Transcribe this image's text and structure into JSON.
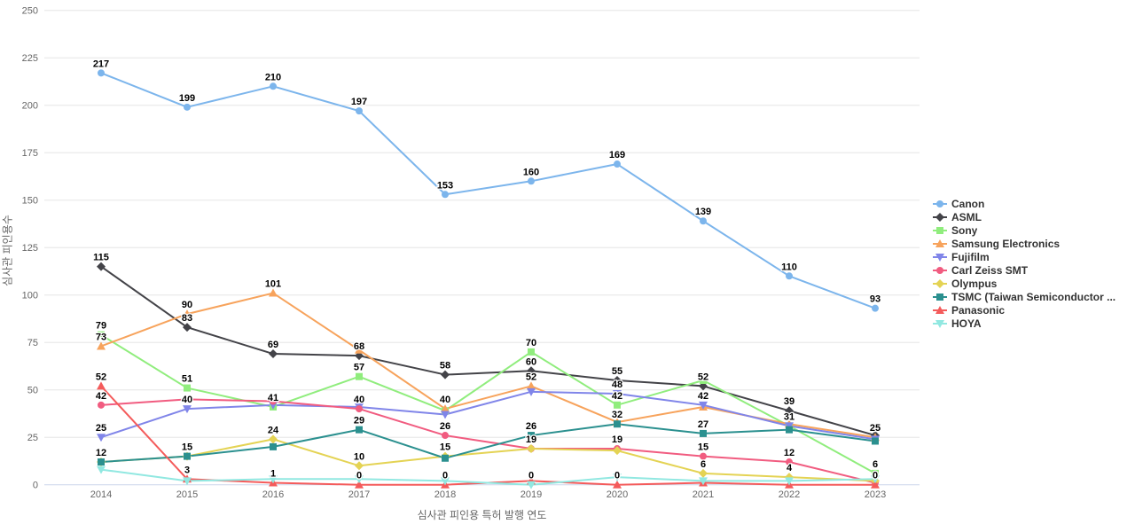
{
  "chart_data": {
    "type": "line",
    "title": "",
    "x_axis": {
      "title": "심사관 피인용 특허 발행 연도",
      "categories": [
        "2014",
        "2015",
        "2016",
        "2017",
        "2018",
        "2019",
        "2020",
        "2021",
        "2022",
        "2023"
      ]
    },
    "y_axis": {
      "title": "심사관 피인용수",
      "min": 0,
      "max": 250,
      "tick_interval": 25,
      "ticks": [
        0,
        25,
        50,
        75,
        100,
        125,
        150,
        175,
        200,
        225,
        250
      ]
    },
    "grid": "horizontal",
    "legend_position": "right",
    "axis_line_color": "#ccd6eb",
    "grid_color": "#e6e6e6",
    "tick_text_color": "#666666",
    "legend_text_color": "#333333",
    "series": [
      {
        "name": "Canon",
        "color": "#7cb5ec",
        "symbol": "circle",
        "values": [
          217,
          199,
          210,
          197,
          153,
          160,
          169,
          139,
          110,
          93
        ],
        "labels": [
          217,
          199,
          210,
          197,
          153,
          160,
          169,
          139,
          110,
          93
        ]
      },
      {
        "name": "ASML",
        "color": "#434348",
        "symbol": "diamond",
        "values": [
          115,
          83,
          69,
          68,
          58,
          60,
          55,
          52,
          39,
          26
        ],
        "labels": [
          115,
          83,
          69,
          68,
          58,
          60,
          55,
          52,
          39,
          null
        ]
      },
      {
        "name": "Sony",
        "color": "#90ed7d",
        "symbol": "square",
        "values": [
          79,
          51,
          41,
          57,
          39,
          70,
          42,
          55,
          31,
          6
        ],
        "labels": [
          79,
          51,
          41,
          57,
          null,
          70,
          42,
          null,
          null,
          6
        ]
      },
      {
        "name": "Samsung Electronics",
        "color": "#f7a35c",
        "symbol": "triangle",
        "values": [
          73,
          90,
          101,
          71,
          40,
          52,
          33,
          41,
          32,
          25
        ],
        "labels": [
          73,
          90,
          101,
          null,
          40,
          52,
          null,
          null,
          null,
          25
        ]
      },
      {
        "name": "Fujifilm",
        "color": "#8085e9",
        "symbol": "triangle-down",
        "values": [
          25,
          40,
          42,
          41,
          37,
          49,
          48,
          42,
          31,
          24
        ],
        "labels": [
          25,
          40,
          null,
          null,
          null,
          null,
          48,
          42,
          31,
          null
        ]
      },
      {
        "name": "Carl Zeiss SMT",
        "color": "#f15c80",
        "symbol": "circle",
        "values": [
          42,
          45,
          44,
          40,
          26,
          19,
          19,
          15,
          12,
          1
        ],
        "labels": [
          42,
          null,
          null,
          40,
          26,
          19,
          19,
          15,
          12,
          null
        ]
      },
      {
        "name": "Olympus",
        "color": "#e4d354",
        "symbol": "diamond",
        "values": [
          12,
          15,
          24,
          10,
          15,
          19,
          18,
          6,
          4,
          2
        ],
        "labels": [
          null,
          null,
          24,
          10,
          15,
          null,
          null,
          6,
          4,
          null
        ]
      },
      {
        "name": "TSMC (Taiwan Semiconductor ...",
        "color": "#2b908f",
        "symbol": "square",
        "values": [
          12,
          15,
          20,
          29,
          14,
          26,
          32,
          27,
          29,
          23
        ],
        "labels": [
          12,
          15,
          null,
          29,
          null,
          26,
          32,
          27,
          null,
          null
        ]
      },
      {
        "name": "Panasonic",
        "color": "#f45b5b",
        "symbol": "triangle",
        "values": [
          52,
          3,
          1,
          0,
          0,
          2,
          0,
          1,
          0,
          0
        ],
        "labels": [
          52,
          3,
          1,
          0,
          0,
          null,
          0,
          null,
          null,
          0
        ]
      },
      {
        "name": "HOYA",
        "color": "#91e8e1",
        "symbol": "triangle-down",
        "values": [
          8,
          2,
          3,
          3,
          2,
          0,
          4,
          2,
          2,
          3
        ],
        "labels": [
          null,
          null,
          null,
          null,
          null,
          0,
          null,
          null,
          null,
          null
        ]
      }
    ]
  }
}
